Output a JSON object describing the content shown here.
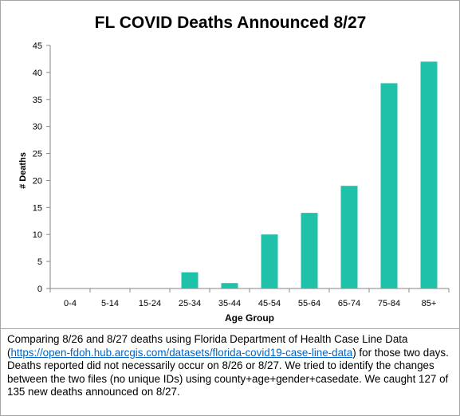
{
  "chart_data": {
    "type": "bar",
    "title": "FL COVID Deaths Announced 8/27",
    "xlabel": "Age Group",
    "ylabel": "# Deaths",
    "categories": [
      "0-4",
      "5-14",
      "15-24",
      "25-34",
      "35-44",
      "45-54",
      "55-64",
      "65-74",
      "75-84",
      "85+"
    ],
    "values": [
      0,
      0,
      0,
      3,
      1,
      10,
      14,
      19,
      38,
      42
    ],
    "ylim": [
      0,
      45
    ],
    "yticks": [
      0,
      5,
      10,
      15,
      20,
      25,
      30,
      35,
      40,
      45
    ],
    "grid": false,
    "legend": "none",
    "bar_color": "#1fc1a8"
  },
  "caption": {
    "before_link": "Comparing 8/26 and 8/27  deaths using Florida Department of Health Case Line Data (",
    "link": "https://open-fdoh.hub.arcgis.com/datasets/florida-covid19-case-line-data",
    "after_link": ") for those two days. Deaths reported did not necessarily occur on 8/26 or 8/27.  We tried to identify the changes between the two files (no unique IDs) using county+age+gender+casedate. We caught 127 of 135  new deaths announced on 8/27."
  },
  "colors": {
    "axis": "#868686",
    "text": "#000000",
    "link": "#0563c1"
  }
}
